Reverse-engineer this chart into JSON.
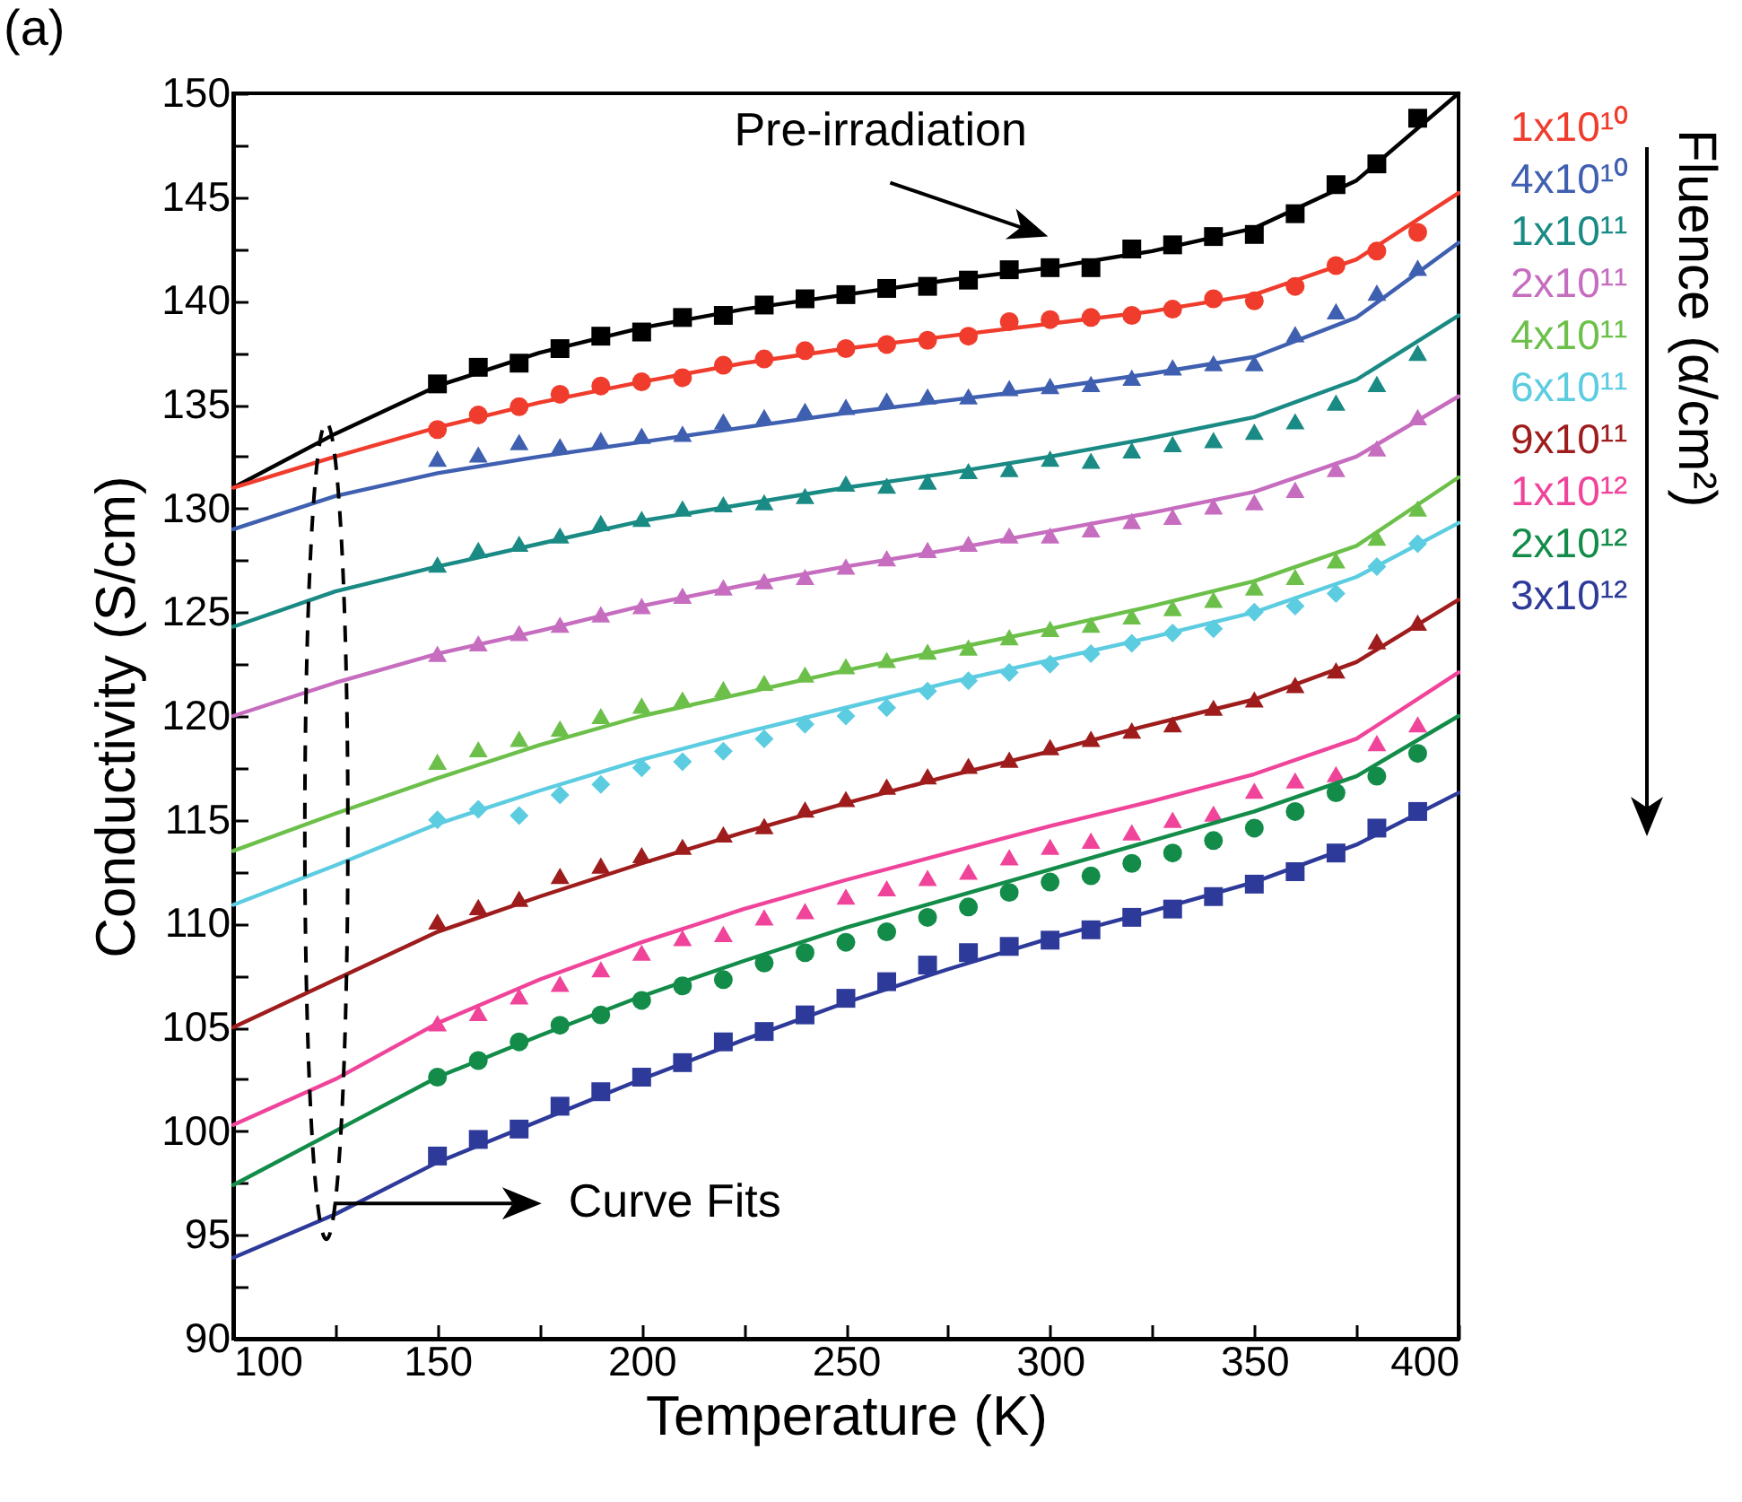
{
  "chart_data": {
    "type": "line",
    "xlabel": "Temperature (K)",
    "ylabel": "Conductivity (S/cm)",
    "legend_title": "Fluence (α/cm²)",
    "legend": "right",
    "grid": false,
    "annotations": [
      "(a)",
      "Pre-irradiation",
      "Curve Fits"
    ],
    "xlim": [
      100,
      400
    ],
    "xticks": [
      100,
      {
        "value": 125,
        "label": null
      },
      150,
      {
        "value": 175,
        "label": null
      },
      200,
      {
        "value": 225,
        "label": null
      },
      250,
      {
        "value": 275,
        "label": null
      },
      300,
      {
        "value": 325,
        "label": null
      },
      350,
      {
        "value": 375,
        "label": null
      },
      400
    ],
    "ylim": [
      90,
      150
    ],
    "yticks": [
      90,
      {
        "value": 92.5,
        "label": null
      },
      95,
      {
        "value": 97.5,
        "label": null
      },
      100,
      {
        "value": 102.5,
        "label": null
      },
      105,
      {
        "value": 107.5,
        "label": null
      },
      110,
      {
        "value": 112.5,
        "label": null
      },
      115,
      {
        "value": 117.5,
        "label": null
      },
      120,
      {
        "value": 122.5,
        "label": null
      },
      125,
      {
        "value": 127.5,
        "label": null
      },
      130,
      {
        "value": 132.5,
        "label": null
      },
      135,
      {
        "value": 137.5,
        "label": null
      },
      140,
      {
        "value": 142.5,
        "label": null
      },
      145,
      {
        "value": 147.5,
        "label": null
      },
      150
    ],
    "series": [
      {
        "marker": "none",
        "color": "#000000",
        "x": [
          100,
          125,
          150,
          175,
          200,
          225,
          250,
          275,
          300,
          325,
          350,
          375,
          400
        ],
        "values": [
          131,
          133.6,
          135.9,
          137.5,
          138.7,
          139.6,
          140.3,
          141.0,
          141.6,
          142.4,
          143.5,
          145.8,
          150
        ]
      },
      {
        "type": "scatter",
        "marker": "square",
        "color": "#000000",
        "x": [
          150,
          160,
          170,
          180,
          190,
          200,
          210,
          220,
          230,
          240,
          250,
          260,
          270,
          280,
          290,
          300,
          310,
          320,
          330,
          340,
          350,
          360,
          370,
          380,
          390
        ],
        "values": [
          136.0,
          136.8,
          137.0,
          137.7,
          138.3,
          138.5,
          139.2,
          139.3,
          139.8,
          140.1,
          140.3,
          140.6,
          140.7,
          141.0,
          141.5,
          141.6,
          141.6,
          142.5,
          142.7,
          143.1,
          143.2,
          144.2,
          145.6,
          146.6,
          148.8
        ]
      },
      {
        "marker": "none",
        "color": "#f03c2c",
        "x": [
          100,
          125,
          150,
          175,
          200,
          225,
          250,
          275,
          300,
          325,
          350,
          375,
          400
        ],
        "values": [
          131,
          132.5,
          133.9,
          135.1,
          136.1,
          137.0,
          137.7,
          138.3,
          138.9,
          139.5,
          140.3,
          142.0,
          145.2
        ]
      },
      {
        "type": "scatter",
        "marker": "circle",
        "name": "1x10¹⁰",
        "color": "#f03c2c",
        "x": [
          150,
          160,
          170,
          180,
          190,
          200,
          210,
          220,
          230,
          240,
          250,
          260,
          270,
          280,
          290,
          300,
          310,
          320,
          330,
          340,
          350,
          360,
          370,
          380,
          390
        ],
        "values": [
          133.8,
          134.5,
          134.9,
          135.5,
          135.9,
          136.1,
          136.3,
          136.9,
          137.2,
          137.6,
          137.7,
          137.9,
          138.1,
          138.3,
          139.0,
          139.1,
          139.2,
          139.3,
          139.6,
          140.1,
          140.0,
          140.7,
          141.7,
          142.4,
          143.3
        ]
      },
      {
        "marker": "none",
        "color": "#3f5fb0",
        "x": [
          100,
          125,
          150,
          175,
          200,
          225,
          250,
          275,
          300,
          325,
          350,
          375,
          400
        ],
        "values": [
          129,
          130.6,
          131.7,
          132.5,
          133.2,
          133.9,
          134.6,
          135.2,
          135.8,
          136.5,
          137.3,
          139.2,
          142.8
        ]
      },
      {
        "type": "scatter",
        "marker": "triangle",
        "name": "4x10¹⁰",
        "color": "#3f5fb0",
        "x": [
          150,
          160,
          170,
          180,
          190,
          200,
          210,
          220,
          230,
          240,
          250,
          260,
          270,
          280,
          290,
          300,
          310,
          320,
          330,
          340,
          350,
          360,
          370,
          380,
          390
        ],
        "values": [
          132.4,
          132.6,
          133.2,
          133.0,
          133.3,
          133.5,
          133.6,
          134.2,
          134.4,
          134.7,
          134.9,
          135.2,
          135.4,
          135.4,
          135.8,
          135.9,
          136.0,
          136.3,
          136.8,
          137.0,
          137.0,
          138.4,
          139.5,
          140.4,
          141.6
        ]
      },
      {
        "marker": "none",
        "color": "#1a8a84",
        "x": [
          100,
          125,
          150,
          175,
          200,
          225,
          250,
          275,
          300,
          325,
          350,
          375,
          400
        ],
        "values": [
          124.3,
          126.0,
          127.2,
          128.3,
          129.4,
          130.2,
          131.0,
          131.7,
          132.5,
          133.4,
          134.4,
          136.2,
          139.3
        ]
      },
      {
        "type": "scatter",
        "marker": "triangle",
        "name": "1x10¹¹",
        "color": "#1a8a84",
        "x": [
          150,
          160,
          170,
          180,
          190,
          200,
          210,
          220,
          230,
          240,
          250,
          260,
          270,
          280,
          290,
          300,
          310,
          320,
          330,
          340,
          350,
          360,
          370,
          380,
          390
        ],
        "values": [
          127.3,
          128.0,
          128.3,
          128.7,
          129.3,
          129.5,
          130.0,
          130.2,
          130.3,
          130.6,
          131.2,
          131.1,
          131.3,
          131.8,
          131.9,
          132.4,
          132.3,
          132.8,
          133.1,
          133.3,
          133.7,
          134.2,
          135.1,
          136.0,
          137.5
        ]
      },
      {
        "marker": "none",
        "color": "#c66dbf",
        "x": [
          100,
          125,
          150,
          175,
          200,
          225,
          250,
          275,
          300,
          325,
          350,
          375,
          400
        ],
        "values": [
          120,
          121.6,
          123.0,
          124.1,
          125.3,
          126.3,
          127.2,
          128.0,
          128.9,
          129.8,
          130.8,
          132.5,
          135.4
        ]
      },
      {
        "type": "scatter",
        "marker": "triangle",
        "name": "2x10¹¹",
        "color": "#c66dbf",
        "x": [
          150,
          160,
          170,
          180,
          190,
          200,
          210,
          220,
          230,
          240,
          250,
          260,
          270,
          280,
          290,
          300,
          310,
          320,
          330,
          340,
          350,
          360,
          370,
          380,
          390
        ],
        "values": [
          123.0,
          123.5,
          124.0,
          124.4,
          124.9,
          125.3,
          125.8,
          126.2,
          126.5,
          126.7,
          127.2,
          127.6,
          128.0,
          128.3,
          128.7,
          128.7,
          129.0,
          129.4,
          129.6,
          130.1,
          130.3,
          130.9,
          131.9,
          132.9,
          134.4
        ]
      },
      {
        "marker": "none",
        "color": "#6cc04a",
        "x": [
          100,
          125,
          150,
          175,
          200,
          225,
          250,
          275,
          300,
          325,
          350,
          375,
          400
        ],
        "values": [
          113.5,
          115.3,
          117.0,
          118.6,
          120.0,
          121.1,
          122.2,
          123.2,
          124.2,
          125.3,
          126.5,
          128.2,
          131.5
        ]
      },
      {
        "type": "scatter",
        "marker": "triangle",
        "name": "4x10¹¹",
        "color": "#6cc04a",
        "x": [
          150,
          160,
          170,
          180,
          190,
          200,
          210,
          220,
          230,
          240,
          250,
          260,
          270,
          280,
          290,
          300,
          310,
          320,
          330,
          340,
          350,
          360,
          370,
          380,
          390
        ],
        "values": [
          117.8,
          118.4,
          118.9,
          119.4,
          120.0,
          120.5,
          120.8,
          121.3,
          121.6,
          122.0,
          122.4,
          122.7,
          123.1,
          123.3,
          123.8,
          124.2,
          124.4,
          124.8,
          125.2,
          125.6,
          126.2,
          126.7,
          127.5,
          128.6,
          130.0
        ]
      },
      {
        "marker": "none",
        "color": "#5ccce0",
        "x": [
          100,
          125,
          150,
          175,
          200,
          225,
          250,
          275,
          300,
          325,
          350,
          375,
          400
        ],
        "values": [
          110.9,
          112.8,
          114.8,
          116.4,
          117.9,
          119.2,
          120.4,
          121.6,
          122.7,
          123.8,
          125.0,
          126.7,
          129.3
        ]
      },
      {
        "type": "scatter",
        "marker": "diamond",
        "name": "6x10¹¹",
        "color": "#5ccce0",
        "x": [
          150,
          160,
          170,
          180,
          190,
          200,
          210,
          220,
          230,
          240,
          250,
          260,
          270,
          280,
          290,
          300,
          310,
          320,
          330,
          340,
          350,
          360,
          370,
          380,
          390
        ],
        "values": [
          115.0,
          115.5,
          115.2,
          116.2,
          116.7,
          117.5,
          117.8,
          118.3,
          118.9,
          119.6,
          120.0,
          120.4,
          121.2,
          121.7,
          122.1,
          122.5,
          123.0,
          123.5,
          124.0,
          124.2,
          125.0,
          125.3,
          125.9,
          127.2,
          128.3
        ]
      },
      {
        "marker": "none",
        "color": "#9e1c1c",
        "x": [
          100,
          125,
          150,
          175,
          200,
          225,
          250,
          275,
          300,
          325,
          350,
          375,
          400
        ],
        "values": [
          105,
          107.3,
          109.6,
          111.3,
          112.9,
          114.4,
          115.8,
          117.1,
          118.3,
          119.6,
          120.8,
          122.6,
          125.6
        ]
      },
      {
        "type": "scatter",
        "marker": "triangle",
        "name": "9x10¹¹",
        "color": "#9e1c1c",
        "x": [
          150,
          160,
          170,
          180,
          190,
          200,
          210,
          220,
          230,
          240,
          250,
          260,
          270,
          280,
          290,
          300,
          310,
          320,
          330,
          340,
          350,
          360,
          370,
          380,
          390
        ],
        "values": [
          110.1,
          110.8,
          111.2,
          112.3,
          112.8,
          113.3,
          113.7,
          114.3,
          114.7,
          115.5,
          116.0,
          116.6,
          117.1,
          117.6,
          117.9,
          118.5,
          118.9,
          119.3,
          119.6,
          120.4,
          120.8,
          121.5,
          122.2,
          123.6,
          124.5
        ]
      },
      {
        "marker": "none",
        "color": "#f0449a",
        "x": [
          100,
          125,
          150,
          175,
          200,
          225,
          250,
          275,
          300,
          325,
          350,
          375,
          400
        ],
        "values": [
          100.3,
          102.5,
          105.2,
          107.3,
          109.1,
          110.7,
          112.1,
          113.4,
          114.7,
          115.9,
          117.2,
          118.9,
          122.1
        ]
      },
      {
        "type": "scatter",
        "marker": "triangle",
        "name": "1x10¹²",
        "color": "#f0449a",
        "x": [
          150,
          160,
          170,
          180,
          190,
          200,
          210,
          220,
          230,
          240,
          250,
          260,
          270,
          280,
          290,
          300,
          310,
          320,
          330,
          340,
          350,
          360,
          370,
          380,
          390
        ],
        "values": [
          105.2,
          105.7,
          106.5,
          107.1,
          107.8,
          108.6,
          109.3,
          109.5,
          110.3,
          110.6,
          111.3,
          111.7,
          112.2,
          112.5,
          113.2,
          113.7,
          114.0,
          114.4,
          115.0,
          115.3,
          116.4,
          116.9,
          117.2,
          118.7,
          119.6
        ]
      },
      {
        "marker": "none",
        "color": "#128c48",
        "x": [
          100,
          125,
          150,
          175,
          200,
          225,
          250,
          275,
          300,
          325,
          350,
          375,
          400
        ],
        "values": [
          97.4,
          100.0,
          102.6,
          104.6,
          106.5,
          108.2,
          109.8,
          111.2,
          112.6,
          114.0,
          115.4,
          117.1,
          120.0
        ]
      },
      {
        "type": "scatter",
        "marker": "circle",
        "name": "2x10¹²",
        "color": "#128c48",
        "x": [
          150,
          160,
          170,
          180,
          190,
          200,
          210,
          220,
          230,
          240,
          250,
          260,
          270,
          280,
          290,
          300,
          310,
          320,
          330,
          340,
          350,
          360,
          370,
          380,
          390
        ],
        "values": [
          102.6,
          103.4,
          104.3,
          105.1,
          105.6,
          106.3,
          107.0,
          107.3,
          108.1,
          108.6,
          109.1,
          109.6,
          110.3,
          110.8,
          111.5,
          112.0,
          112.3,
          112.9,
          113.4,
          114.0,
          114.6,
          115.4,
          116.3,
          117.1,
          118.2
        ]
      },
      {
        "marker": "none",
        "color": "#2e3a9a",
        "x": [
          100,
          125,
          150,
          175,
          200,
          225,
          250,
          275,
          300,
          325,
          350,
          375,
          400
        ],
        "values": [
          93.9,
          96.0,
          98.5,
          100.5,
          102.5,
          104.4,
          106.2,
          107.8,
          109.3,
          110.6,
          112.0,
          113.8,
          116.3
        ]
      },
      {
        "type": "scatter",
        "marker": "square",
        "name": "3x10¹²",
        "color": "#2e3a9a",
        "x": [
          150,
          160,
          170,
          180,
          190,
          200,
          210,
          220,
          230,
          240,
          250,
          260,
          270,
          280,
          290,
          300,
          310,
          320,
          330,
          340,
          350,
          360,
          370,
          380,
          390
        ],
        "values": [
          98.8,
          99.6,
          100.1,
          101.2,
          101.9,
          102.6,
          103.3,
          104.3,
          104.8,
          105.6,
          106.4,
          107.2,
          108.0,
          108.6,
          108.9,
          109.2,
          109.7,
          110.3,
          110.7,
          111.3,
          111.9,
          112.5,
          113.4,
          114.6,
          115.4
        ]
      }
    ]
  }
}
